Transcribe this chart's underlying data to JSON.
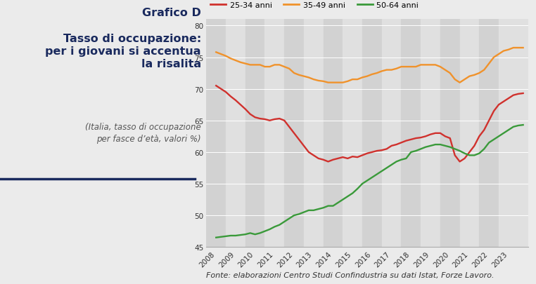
{
  "title_bold": "Grafico D",
  "title_main": "Tasso di occupazione:\nper i giovani si accentua\nla risalita",
  "subtitle": "(Italia, tasso di occupazione\nper fasce d’età, valori %)",
  "fonte": "Fonte: elaborazioni Centro Studi Confindustria su dati Istat, Forze Lavoro.",
  "line_25_34": {
    "label": "25-34 anni",
    "color": "#d0312d",
    "x": [
      2008.0,
      2008.25,
      2008.5,
      2008.75,
      2009.0,
      2009.25,
      2009.5,
      2009.75,
      2010.0,
      2010.25,
      2010.5,
      2010.75,
      2011.0,
      2011.25,
      2011.5,
      2011.75,
      2012.0,
      2012.25,
      2012.5,
      2012.75,
      2013.0,
      2013.25,
      2013.5,
      2013.75,
      2014.0,
      2014.25,
      2014.5,
      2014.75,
      2015.0,
      2015.25,
      2015.5,
      2015.75,
      2016.0,
      2016.25,
      2016.5,
      2016.75,
      2017.0,
      2017.25,
      2017.5,
      2017.75,
      2018.0,
      2018.25,
      2018.5,
      2018.75,
      2019.0,
      2019.25,
      2019.5,
      2019.75,
      2020.0,
      2020.25,
      2020.5,
      2020.75,
      2021.0,
      2021.25,
      2021.5,
      2021.75,
      2022.0,
      2022.25,
      2022.5,
      2022.75,
      2023.0,
      2023.25,
      2023.5,
      2023.75
    ],
    "y": [
      70.5,
      70.0,
      69.5,
      68.8,
      68.2,
      67.5,
      66.8,
      66.0,
      65.5,
      65.3,
      65.2,
      65.0,
      65.2,
      65.3,
      65.0,
      64.0,
      63.0,
      62.0,
      61.0,
      60.0,
      59.5,
      59.0,
      58.8,
      58.5,
      58.8,
      59.0,
      59.2,
      59.0,
      59.3,
      59.2,
      59.5,
      59.8,
      60.0,
      60.2,
      60.3,
      60.5,
      61.0,
      61.2,
      61.5,
      61.8,
      62.0,
      62.2,
      62.3,
      62.5,
      62.8,
      63.0,
      63.0,
      62.5,
      62.2,
      59.5,
      58.5,
      59.0,
      60.0,
      61.0,
      62.5,
      63.5,
      65.0,
      66.5,
      67.5,
      68.0,
      68.5,
      69.0,
      69.2,
      69.3
    ]
  },
  "line_35_49": {
    "label": "35-49 anni",
    "color": "#f0922b",
    "x": [
      2008.0,
      2008.25,
      2008.5,
      2008.75,
      2009.0,
      2009.25,
      2009.5,
      2009.75,
      2010.0,
      2010.25,
      2010.5,
      2010.75,
      2011.0,
      2011.25,
      2011.5,
      2011.75,
      2012.0,
      2012.25,
      2012.5,
      2012.75,
      2013.0,
      2013.25,
      2013.5,
      2013.75,
      2014.0,
      2014.25,
      2014.5,
      2014.75,
      2015.0,
      2015.25,
      2015.5,
      2015.75,
      2016.0,
      2016.25,
      2016.5,
      2016.75,
      2017.0,
      2017.25,
      2017.5,
      2017.75,
      2018.0,
      2018.25,
      2018.5,
      2018.75,
      2019.0,
      2019.25,
      2019.5,
      2019.75,
      2020.0,
      2020.25,
      2020.5,
      2020.75,
      2021.0,
      2021.25,
      2021.5,
      2021.75,
      2022.0,
      2022.25,
      2022.5,
      2022.75,
      2023.0,
      2023.25,
      2023.5,
      2023.75
    ],
    "y": [
      75.8,
      75.5,
      75.2,
      74.8,
      74.5,
      74.2,
      74.0,
      73.8,
      73.8,
      73.8,
      73.5,
      73.5,
      73.8,
      73.8,
      73.5,
      73.2,
      72.5,
      72.2,
      72.0,
      71.8,
      71.5,
      71.3,
      71.2,
      71.0,
      71.0,
      71.0,
      71.0,
      71.2,
      71.5,
      71.5,
      71.8,
      72.0,
      72.3,
      72.5,
      72.8,
      73.0,
      73.0,
      73.2,
      73.5,
      73.5,
      73.5,
      73.5,
      73.8,
      73.8,
      73.8,
      73.8,
      73.5,
      73.0,
      72.5,
      71.5,
      71.0,
      71.5,
      72.0,
      72.2,
      72.5,
      73.0,
      74.0,
      75.0,
      75.5,
      76.0,
      76.2,
      76.5,
      76.5,
      76.5
    ]
  },
  "line_50_64": {
    "label": "50-64 anni",
    "color": "#3a9a3a",
    "x": [
      2008.0,
      2008.25,
      2008.5,
      2008.75,
      2009.0,
      2009.25,
      2009.5,
      2009.75,
      2010.0,
      2010.25,
      2010.5,
      2010.75,
      2011.0,
      2011.25,
      2011.5,
      2011.75,
      2012.0,
      2012.25,
      2012.5,
      2012.75,
      2013.0,
      2013.25,
      2013.5,
      2013.75,
      2014.0,
      2014.25,
      2014.5,
      2014.75,
      2015.0,
      2015.25,
      2015.5,
      2015.75,
      2016.0,
      2016.25,
      2016.5,
      2016.75,
      2017.0,
      2017.25,
      2017.5,
      2017.75,
      2018.0,
      2018.25,
      2018.5,
      2018.75,
      2019.0,
      2019.25,
      2019.5,
      2019.75,
      2020.0,
      2020.25,
      2020.5,
      2020.75,
      2021.0,
      2021.25,
      2021.5,
      2021.75,
      2022.0,
      2022.25,
      2022.5,
      2022.75,
      2023.0,
      2023.25,
      2023.5,
      2023.75
    ],
    "y": [
      46.5,
      46.6,
      46.7,
      46.8,
      46.8,
      46.9,
      47.0,
      47.2,
      47.0,
      47.2,
      47.5,
      47.8,
      48.2,
      48.5,
      49.0,
      49.5,
      50.0,
      50.2,
      50.5,
      50.8,
      50.8,
      51.0,
      51.2,
      51.5,
      51.5,
      52.0,
      52.5,
      53.0,
      53.5,
      54.2,
      55.0,
      55.5,
      56.0,
      56.5,
      57.0,
      57.5,
      58.0,
      58.5,
      58.8,
      59.0,
      60.0,
      60.2,
      60.5,
      60.8,
      61.0,
      61.2,
      61.2,
      61.0,
      60.8,
      60.5,
      60.2,
      59.8,
      59.5,
      59.5,
      59.8,
      60.5,
      61.5,
      62.0,
      62.5,
      63.0,
      63.5,
      64.0,
      64.2,
      64.3
    ]
  },
  "years": [
    2008,
    2009,
    2010,
    2011,
    2012,
    2013,
    2014,
    2015,
    2016,
    2017,
    2018,
    2019,
    2020,
    2021,
    2022,
    2023
  ],
  "xlim": [
    2007.5,
    2024.0
  ],
  "ylim": [
    45,
    81
  ],
  "yticks": [
    45,
    50,
    55,
    60,
    65,
    70,
    75,
    80
  ],
  "bg_color": "#ebebeb",
  "plot_bg_light": "#e0e0e0",
  "plot_bg_dark": "#d2d2d2",
  "title_color": "#1a2a5e",
  "line_color": "#888888",
  "fonte_fontsize": 8
}
